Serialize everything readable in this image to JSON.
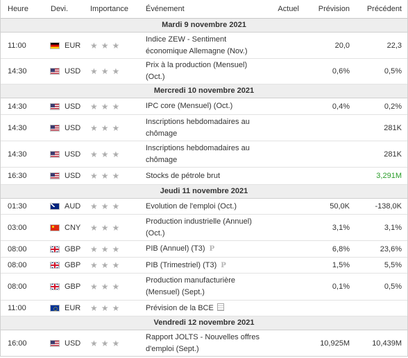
{
  "headers": {
    "time": "Heure",
    "currency": "Devi.",
    "importance": "Importance",
    "event": "Événement",
    "actual": "Actuel",
    "forecast": "Prévision",
    "previous": "Précédent"
  },
  "colors": {
    "previous_up": "#2a9d2a",
    "star": "#aeaeae",
    "day_bg": "#eeeeee"
  },
  "days": [
    {
      "label": "Mardi 9 novembre 2021"
    },
    {
      "label": "Mercredi 10 novembre 2021"
    },
    {
      "label": "Jeudi 11 novembre 2021"
    },
    {
      "label": "Vendredi 12 novembre 2021"
    }
  ],
  "events": [
    {
      "time": "11:00",
      "flag": "de-flag-icon",
      "currency": "EUR",
      "event": "Indice ZEW - Sentiment économique Allemagne (Nov.)",
      "actual": "",
      "forecast": "20,0",
      "previous": "22,3"
    },
    {
      "time": "14:30",
      "flag": "us-flag-icon",
      "currency": "USD",
      "event": "Prix à la production (Mensuel) (Oct.)",
      "actual": "",
      "forecast": "0,6%",
      "previous": "0,5%"
    },
    {
      "time": "14:30",
      "flag": "us-flag-icon",
      "currency": "USD",
      "event": "IPC core (Mensuel) (Oct.)",
      "actual": "",
      "forecast": "0,4%",
      "previous": "0,2%"
    },
    {
      "time": "14:30",
      "flag": "us-flag-icon",
      "currency": "USD",
      "event": "Inscriptions hebdomadaires au chômage",
      "actual": "",
      "forecast": "",
      "previous": "281K"
    },
    {
      "time": "14:30",
      "flag": "us-flag-icon",
      "currency": "USD",
      "event": "Inscriptions hebdomadaires au chômage",
      "actual": "",
      "forecast": "",
      "previous": "281K"
    },
    {
      "time": "16:30",
      "flag": "us-flag-icon",
      "currency": "USD",
      "event": "Stocks de pétrole brut",
      "actual": "",
      "forecast": "",
      "previous": "3,291M"
    },
    {
      "time": "01:30",
      "flag": "au-flag-icon",
      "currency": "AUD",
      "event": "Evolution de l'emploi (Oct.)",
      "actual": "",
      "forecast": "50,0K",
      "previous": "-138,0K"
    },
    {
      "time": "03:00",
      "flag": "cn-flag-icon",
      "currency": "CNY",
      "event": "Production industrielle (Annuel) (Oct.)",
      "actual": "",
      "forecast": "3,1%",
      "previous": "3,1%"
    },
    {
      "time": "08:00",
      "flag": "gb-flag-icon",
      "currency": "GBP",
      "event": "PIB (Annuel) (T3)",
      "actual": "",
      "forecast": "6,8%",
      "previous": "23,6%"
    },
    {
      "time": "08:00",
      "flag": "gb-flag-icon",
      "currency": "GBP",
      "event": "PIB (Trimestriel) (T3)",
      "actual": "",
      "forecast": "1,5%",
      "previous": "5,5%"
    },
    {
      "time": "08:00",
      "flag": "gb-flag-icon",
      "currency": "GBP",
      "event": "Production manufacturière (Mensuel) (Sept.)",
      "actual": "",
      "forecast": "0,1%",
      "previous": "0,5%"
    },
    {
      "time": "11:00",
      "flag": "eu-flag-icon",
      "currency": "EUR",
      "event": "Prévision de la BCE",
      "actual": "",
      "forecast": "",
      "previous": ""
    },
    {
      "time": "16:00",
      "flag": "us-flag-icon",
      "currency": "USD",
      "event": "Rapport JOLTS - Nouvelles offres d'emploi (Sept.)",
      "actual": "",
      "forecast": "10,925M",
      "previous": "10,439M"
    }
  ],
  "icons": {
    "star": "star-icon",
    "preliminary": "preliminary-p-icon",
    "document": "document-icon",
    "preliminary_glyph": "P"
  }
}
